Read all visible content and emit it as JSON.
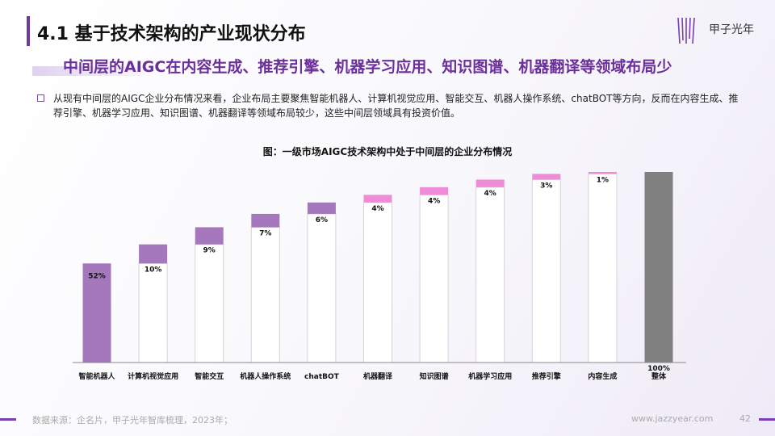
{
  "header": {
    "title": "4.1 基于技术架构的产业现状分布",
    "logo_text": "甲子光年",
    "subtitle": "中间层的AIGC在内容生成、推荐引擎、机器学习应用、知识图谱、机器翻译等领域布局少"
  },
  "body": {
    "text": "从现有中间层的AIGC企业分布情况来看，企业布局主要聚焦智能机器人、计算机视觉应用、智能交互、机器人操作系统、chatBOT等方向，反而在内容生成、推荐引擎、机器学习应用、知识图谱、机器翻译等领域布局较少，这些中间层领域具有投资价值。"
  },
  "chart_data": {
    "type": "bar",
    "subtype": "waterfall",
    "title": "图：一级市场AIGC技术架构中处于中间层的企业分布情况",
    "categories": [
      "智能机器人",
      "计算机视觉应用",
      "智能交互",
      "机器人操作系统",
      "chatBOT",
      "机器翻译",
      "知识图谱",
      "机器学习应用",
      "推荐引擎",
      "内容生成",
      "整体"
    ],
    "values": [
      52,
      10,
      9,
      7,
      6,
      4,
      4,
      4,
      3,
      1,
      100
    ],
    "labels": [
      "52%",
      "10%",
      "9%",
      "7%",
      "6%",
      "4%",
      "4%",
      "4%",
      "3%",
      "1%",
      "100%"
    ],
    "ylim": [
      0,
      100
    ],
    "grid": false,
    "colors": {
      "high": "#a578be",
      "low": "#ee8cd8",
      "total": "#808080"
    },
    "color_groups": [
      "high",
      "high",
      "high",
      "high",
      "high",
      "low",
      "low",
      "low",
      "low",
      "low",
      "total"
    ]
  },
  "footer": {
    "source": "数据来源：企名片，甲子光年智库梳理，2023年；",
    "url": "www.jazzyear.com",
    "page": "42"
  }
}
